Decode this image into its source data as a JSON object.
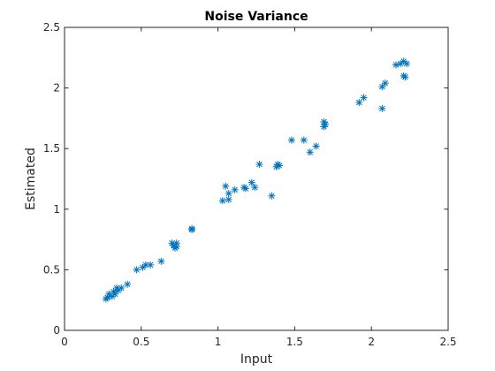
{
  "chart_data": {
    "type": "scatter",
    "title": "Noise Variance",
    "xlabel": "Input",
    "ylabel": "Estimated",
    "xlim": [
      0,
      2.5
    ],
    "ylim": [
      0,
      2.5
    ],
    "xticks": [
      0,
      0.5,
      1,
      1.5,
      2,
      2.5
    ],
    "yticks": [
      0,
      0.5,
      1,
      1.5,
      2,
      2.5
    ],
    "xtick_labels": [
      "0",
      "0.5",
      "1",
      "1.5",
      "2",
      "2.5"
    ],
    "ytick_labels": [
      "0",
      "0.5",
      "1",
      "1.5",
      "2",
      "2.5"
    ],
    "marker": "asterisk",
    "grid": false,
    "colors": {
      "marker": "#0072BD",
      "axes": "#262626"
    },
    "series": [
      {
        "points": [
          [
            0.27,
            0.26
          ],
          [
            0.28,
            0.27
          ],
          [
            0.29,
            0.3
          ],
          [
            0.31,
            0.28
          ],
          [
            0.32,
            0.32
          ],
          [
            0.33,
            0.3
          ],
          [
            0.34,
            0.35
          ],
          [
            0.35,
            0.33
          ],
          [
            0.37,
            0.35
          ],
          [
            0.41,
            0.38
          ],
          [
            0.47,
            0.5
          ],
          [
            0.51,
            0.52
          ],
          [
            0.53,
            0.54
          ],
          [
            0.56,
            0.54
          ],
          [
            0.63,
            0.57
          ],
          [
            0.7,
            0.72
          ],
          [
            0.71,
            0.7
          ],
          [
            0.72,
            0.68
          ],
          [
            0.73,
            0.72
          ],
          [
            0.73,
            0.69
          ],
          [
            0.83,
            0.83
          ],
          [
            0.83,
            0.84
          ],
          [
            1.03,
            1.07
          ],
          [
            1.05,
            1.19
          ],
          [
            1.07,
            1.08
          ],
          [
            1.07,
            1.13
          ],
          [
            1.11,
            1.16
          ],
          [
            1.17,
            1.18
          ],
          [
            1.18,
            1.17
          ],
          [
            1.22,
            1.22
          ],
          [
            1.24,
            1.18
          ],
          [
            1.27,
            1.37
          ],
          [
            1.35,
            1.11
          ],
          [
            1.38,
            1.35
          ],
          [
            1.39,
            1.37
          ],
          [
            1.4,
            1.36
          ],
          [
            1.48,
            1.57
          ],
          [
            1.56,
            1.57
          ],
          [
            1.6,
            1.47
          ],
          [
            1.64,
            1.52
          ],
          [
            1.69,
            1.68
          ],
          [
            1.69,
            1.72
          ],
          [
            1.7,
            1.7
          ],
          [
            1.92,
            1.88
          ],
          [
            1.95,
            1.92
          ],
          [
            2.07,
            1.83
          ],
          [
            2.07,
            2.01
          ],
          [
            2.09,
            2.04
          ],
          [
            2.16,
            2.19
          ],
          [
            2.19,
            2.2
          ],
          [
            2.21,
            2.22
          ],
          [
            2.21,
            2.1
          ],
          [
            2.22,
            2.09
          ],
          [
            2.23,
            2.2
          ]
        ]
      }
    ]
  }
}
